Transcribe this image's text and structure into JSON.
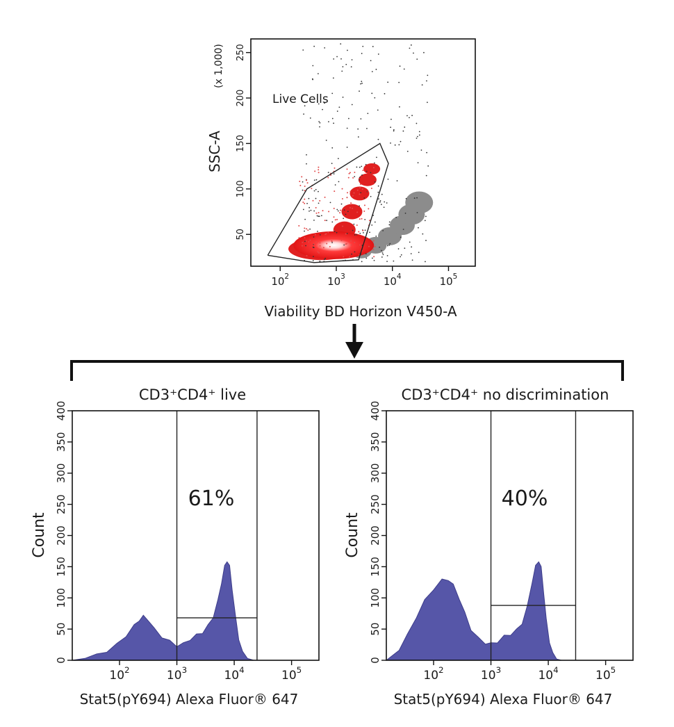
{
  "figure": {
    "arrow_color": "#111111"
  },
  "chart_data": [
    {
      "type": "scatter",
      "name_key": "viability",
      "xlabel": "Viability BD Horizon V450-A",
      "ylabel": "SSC-A",
      "y_multiplier": "(x 1,000)",
      "x_scale": "log",
      "xlim": [
        30,
        300000
      ],
      "ylim": [
        15,
        265
      ],
      "x_ticks": [
        {
          "value": 100,
          "label": "10",
          "exp": "2"
        },
        {
          "value": 1000,
          "label": "10",
          "exp": "3"
        },
        {
          "value": 10000,
          "label": "10",
          "exp": "4"
        },
        {
          "value": 100000,
          "label": "10",
          "exp": "5"
        }
      ],
      "y_ticks": [
        {
          "value": 50,
          "label": "50"
        },
        {
          "value": 100,
          "label": "100"
        },
        {
          "value": 150,
          "label": "150"
        },
        {
          "value": 200,
          "label": "200"
        },
        {
          "value": 250,
          "label": "250"
        }
      ],
      "gate_label": "Live Cells",
      "gate": [
        [
          60,
          27
        ],
        [
          300,
          100
        ],
        [
          6000,
          150
        ],
        [
          8500,
          128
        ],
        [
          2500,
          22
        ],
        [
          400,
          19
        ],
        [
          60,
          27
        ]
      ],
      "series": [
        {
          "color": "#e02020"
        },
        {
          "color": "#8c8c8c"
        }
      ],
      "red_cloud": [
        {
          "x": 550,
          "y": 34
        },
        {
          "x": 900,
          "y": 38
        },
        {
          "x": 1400,
          "y": 55
        },
        {
          "x": 1900,
          "y": 75
        },
        {
          "x": 2600,
          "y": 95
        },
        {
          "x": 3600,
          "y": 110
        },
        {
          "x": 4300,
          "y": 122
        }
      ],
      "gray_cloud": [
        {
          "x": 2800,
          "y": 32
        },
        {
          "x": 5000,
          "y": 38
        },
        {
          "x": 9000,
          "y": 48
        },
        {
          "x": 15000,
          "y": 60
        },
        {
          "x": 22000,
          "y": 72
        },
        {
          "x": 30000,
          "y": 85
        }
      ]
    },
    {
      "type": "area",
      "title": "CD3⁺CD4⁺ live",
      "xlabel": "Stat5(pY694) Alexa Fluor® 647",
      "ylabel": "Count",
      "x_scale": "log",
      "xlim": [
        15,
        300000
      ],
      "ylim": [
        0,
        400
      ],
      "color": "#5656a8",
      "gate_label": "61%",
      "gate_x": [
        1000,
        25000
      ],
      "marker_y": 68,
      "x_ticks": [
        {
          "value": 100,
          "label": "10",
          "exp": "2"
        },
        {
          "value": 1000,
          "label": "10",
          "exp": "3"
        },
        {
          "value": 10000,
          "label": "10",
          "exp": "4"
        },
        {
          "value": 100000,
          "label": "10",
          "exp": "5"
        }
      ],
      "y_ticks": [
        0,
        50,
        100,
        150,
        200,
        250,
        300,
        350,
        400
      ],
      "x": [
        15,
        25,
        40,
        60,
        90,
        130,
        180,
        220,
        260,
        320,
        400,
        550,
        750,
        1000,
        1300,
        1700,
        2200,
        2800,
        3500,
        4300,
        5200,
        6000,
        6800,
        7500,
        8300,
        9200,
        10500,
        12000,
        14000,
        17000,
        22000,
        30000
      ],
      "values": [
        0,
        3,
        8,
        15,
        25,
        40,
        55,
        65,
        70,
        65,
        50,
        38,
        30,
        24,
        26,
        34,
        40,
        45,
        55,
        70,
        95,
        125,
        150,
        160,
        150,
        115,
        70,
        35,
        12,
        3,
        0,
        0
      ]
    },
    {
      "type": "area",
      "title": "CD3⁺CD4⁺ no discrimination",
      "xlabel": "Stat5(pY694) Alexa Fluor® 647",
      "ylabel": "Count",
      "x_scale": "log",
      "xlim": [
        15,
        300000
      ],
      "ylim": [
        0,
        400
      ],
      "color": "#5656a8",
      "gate_label": "40%",
      "gate_x": [
        1000,
        30000
      ],
      "marker_y": 88,
      "x_ticks": [
        {
          "value": 100,
          "label": "10",
          "exp": "2"
        },
        {
          "value": 1000,
          "label": "10",
          "exp": "3"
        },
        {
          "value": 10000,
          "label": "10",
          "exp": "4"
        },
        {
          "value": 100000,
          "label": "10",
          "exp": "5"
        }
      ],
      "y_ticks": [
        0,
        50,
        100,
        150,
        200,
        250,
        300,
        350,
        400
      ],
      "x": [
        15,
        25,
        35,
        50,
        70,
        100,
        140,
        180,
        220,
        280,
        350,
        450,
        600,
        800,
        1000,
        1300,
        1700,
        2200,
        2800,
        3500,
        4300,
        5200,
        6000,
        6800,
        7500,
        8300,
        9200,
        10500,
        12000,
        14000,
        17000,
        22000,
        30000
      ],
      "values": [
        0,
        18,
        40,
        70,
        95,
        115,
        128,
        130,
        120,
        100,
        75,
        50,
        35,
        28,
        26,
        30,
        38,
        42,
        48,
        60,
        85,
        125,
        150,
        160,
        148,
        110,
        65,
        30,
        10,
        2,
        0,
        0,
        0
      ]
    }
  ]
}
